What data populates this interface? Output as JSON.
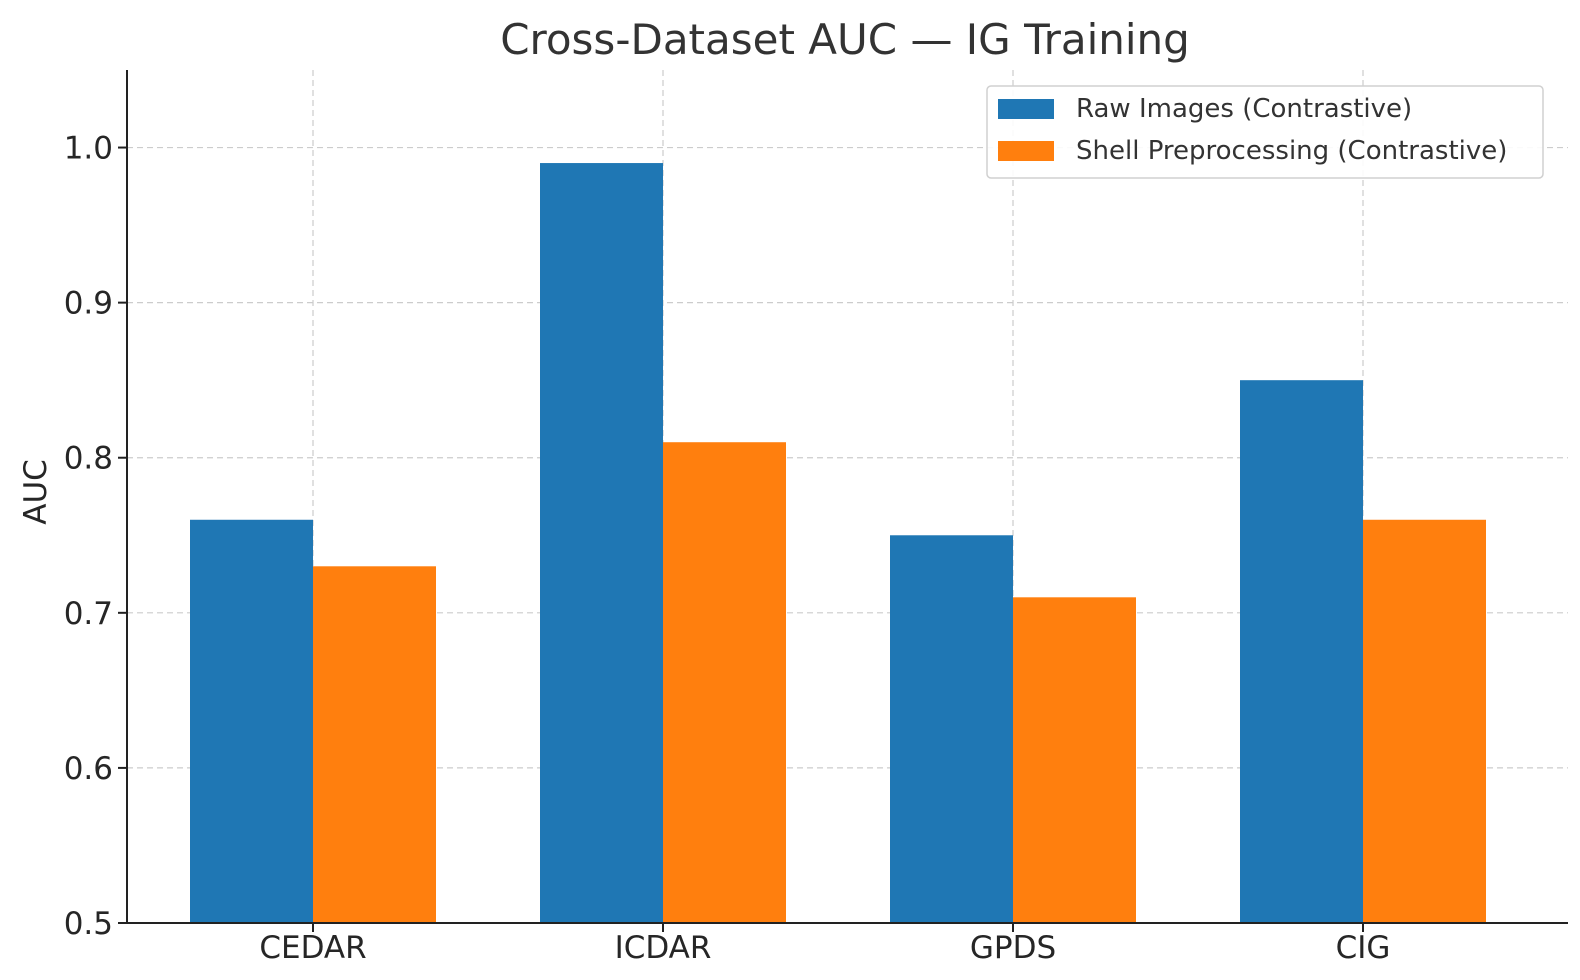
{
  "chart_data": {
    "type": "bar",
    "title": "Cross-Dataset AUC — IG Training",
    "xlabel": "",
    "ylabel": "AUC",
    "ylim": [
      0.5,
      1.05
    ],
    "yticks": [
      "0.5",
      "0.6",
      "0.7",
      "0.8",
      "0.9",
      "1.0"
    ],
    "categories": [
      "CEDAR",
      "ICDAR",
      "GPDS",
      "CIG"
    ],
    "series": [
      {
        "name": "Raw Images (Contrastive)",
        "values": [
          0.76,
          0.99,
          0.75,
          0.85
        ],
        "color": "#1f77b4"
      },
      {
        "name": "Shell Preprocessing (Contrastive)",
        "values": [
          0.73,
          0.81,
          0.71,
          0.76
        ],
        "color": "#ff7f0e"
      }
    ],
    "grid": true,
    "legend": "top-right"
  }
}
